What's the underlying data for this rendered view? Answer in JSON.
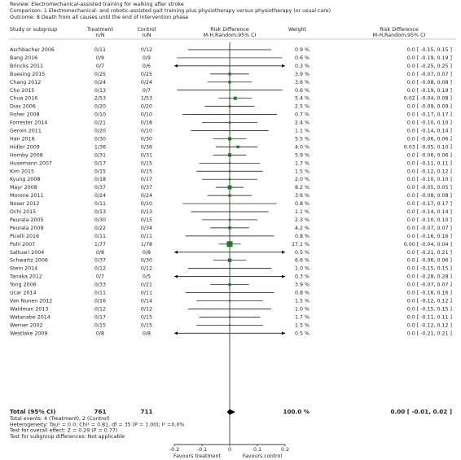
{
  "review": "Review:  Electromechanical-assisted training for walking after stroke",
  "comparison": "Comparison:  1 Electromechanical- and robotic-assisted gait training plus physiotherapy versus physiotherapy (or usual care)",
  "outcome": "Outcome:  8 Death from all causes until the end of intervention phase",
  "headers": {
    "study": "Study or subgroup",
    "treatment": "Treatment",
    "treatment_n": "n/N",
    "control": "Control",
    "control_n": "n/N",
    "rd": "Risk Difference",
    "rd_method": "M-H,Random,95% CI",
    "weight": "Weight",
    "rd2": "Risk Difference",
    "rd2_method": "M-H,Random,95% CI"
  },
  "chart_data": {
    "type": "forest",
    "xlim": [
      -0.2,
      0.2
    ],
    "xticks": [
      -0.2,
      -0.1,
      0,
      0.1,
      0.2
    ],
    "x_labels": [
      "Favours treatment",
      "Favours control"
    ],
    "studies": [
      {
        "name": "Aschbacher 2006",
        "treatment": "0/11",
        "control": "0/12",
        "weight": 0.9,
        "weight_label": "0.9 %",
        "rd": 0,
        "lower": -0.15,
        "upper": 0.15,
        "ci": "0.0 [ -0.15, 0.15 ]"
      },
      {
        "name": "Bang 2016",
        "treatment": "0/9",
        "control": "0/9",
        "weight": 0.6,
        "weight_label": "0.6 %",
        "rd": 0,
        "lower": -0.19,
        "upper": 0.19,
        "ci": "0.0 [ -0.19, 0.19 ]"
      },
      {
        "name": "Brincks 2011",
        "treatment": "0/7",
        "control": "0/6",
        "weight": 0.3,
        "weight_label": "0.3 %",
        "rd": 0,
        "lower": -0.25,
        "upper": 0.25,
        "ci": "0.0 [ -0.25, 0.25 ]"
      },
      {
        "name": "Buesing 2015",
        "treatment": "0/25",
        "control": "0/25",
        "weight": 3.9,
        "weight_label": "3.9 %",
        "rd": 0,
        "lower": -0.07,
        "upper": 0.07,
        "ci": "0.0 [ -0.07, 0.07 ]"
      },
      {
        "name": "Chang 2012",
        "treatment": "0/24",
        "control": "0/24",
        "weight": 3.6,
        "weight_label": "3.6 %",
        "rd": 0,
        "lower": -0.08,
        "upper": 0.08,
        "ci": "0.0 [ -0.08, 0.08 ]"
      },
      {
        "name": "Cho 2015",
        "treatment": "0/13",
        "control": "0/7",
        "weight": 0.6,
        "weight_label": "0.6 %",
        "rd": 0,
        "lower": -0.19,
        "upper": 0.19,
        "ci": "0.0 [ -0.19, 0.19 ]"
      },
      {
        "name": "Chua 2016",
        "treatment": "2/53",
        "control": "1/53",
        "weight": 5.4,
        "weight_label": "5.4 %",
        "rd": 0.02,
        "lower": -0.04,
        "upper": 0.08,
        "ci": "0.02 [ -0.04, 0.08 ]"
      },
      {
        "name": "Dias 2006",
        "treatment": "0/20",
        "control": "0/20",
        "weight": 2.5,
        "weight_label": "2.5 %",
        "rd": 0,
        "lower": -0.09,
        "upper": 0.09,
        "ci": "0.0 [ -0.09, 0.09 ]"
      },
      {
        "name": "Fisher 2008",
        "treatment": "0/10",
        "control": "0/10",
        "weight": 0.7,
        "weight_label": "0.7 %",
        "rd": 0,
        "lower": -0.17,
        "upper": 0.17,
        "ci": "0.0 [ -0.17, 0.17 ]"
      },
      {
        "name": "Forrester 2014",
        "treatment": "0/21",
        "control": "0/18",
        "weight": 2.4,
        "weight_label": "2.4 %",
        "rd": 0,
        "lower": -0.1,
        "upper": 0.1,
        "ci": "0.0 [ -0.10, 0.10 ]"
      },
      {
        "name": "Geroin 2011",
        "treatment": "0/20",
        "control": "0/10",
        "weight": 1.1,
        "weight_label": "1.1 %",
        "rd": 0,
        "lower": -0.14,
        "upper": 0.14,
        "ci": "0.0 [ -0.14, 0.14 ]"
      },
      {
        "name": "Han 2016",
        "treatment": "0/30",
        "control": "0/30",
        "weight": 5.5,
        "weight_label": "5.5 %",
        "rd": 0,
        "lower": -0.06,
        "upper": 0.06,
        "ci": "0.0 [ -0.06, 0.06 ]"
      },
      {
        "name": "Hidler 2009",
        "treatment": "1/36",
        "control": "0/36",
        "weight": 4.0,
        "weight_label": "4.0 %",
        "rd": 0.03,
        "lower": -0.05,
        "upper": 0.1,
        "ci": "0.03 [ -0.05, 0.10 ]"
      },
      {
        "name": "Hornby 2008",
        "treatment": "0/31",
        "control": "0/31",
        "weight": 5.9,
        "weight_label": "5.9 %",
        "rd": 0,
        "lower": -0.06,
        "upper": 0.06,
        "ci": "0.0 [ -0.06, 0.06 ]"
      },
      {
        "name": "Husemann 2007",
        "treatment": "0/17",
        "control": "0/15",
        "weight": 1.7,
        "weight_label": "1.7 %",
        "rd": 0,
        "lower": -0.11,
        "upper": 0.11,
        "ci": "0.0 [ -0.11, 0.11 ]"
      },
      {
        "name": "Kim 2015",
        "treatment": "0/15",
        "control": "0/15",
        "weight": 1.5,
        "weight_label": "1.5 %",
        "rd": 0,
        "lower": -0.12,
        "upper": 0.12,
        "ci": "0.0 [ -0.12, 0.12 ]"
      },
      {
        "name": "Kyung 2008",
        "treatment": "0/18",
        "control": "0/17",
        "weight": 2.0,
        "weight_label": "2.0 %",
        "rd": 0,
        "lower": -0.1,
        "upper": 0.1,
        "ci": "0.0 [ -0.10, 0.10 ]"
      },
      {
        "name": "Mayr 2008",
        "treatment": "0/37",
        "control": "0/37",
        "weight": 8.2,
        "weight_label": "8.2 %",
        "rd": 0,
        "lower": -0.05,
        "upper": 0.05,
        "ci": "0.0 [ -0.05, 0.05 ]"
      },
      {
        "name": "Morone 2011",
        "treatment": "0/24",
        "control": "0/24",
        "weight": 3.6,
        "weight_label": "3.6 %",
        "rd": 0,
        "lower": -0.08,
        "upper": 0.08,
        "ci": "0.0 [ -0.08, 0.08 ]"
      },
      {
        "name": "Noser 2012",
        "treatment": "0/11",
        "control": "0/10",
        "weight": 0.8,
        "weight_label": "0.8 %",
        "rd": 0,
        "lower": -0.17,
        "upper": 0.17,
        "ci": "0.0 [ -0.17, 0.17 ]"
      },
      {
        "name": "Ochi 2015",
        "treatment": "0/13",
        "control": "0/13",
        "weight": 1.1,
        "weight_label": "1.1 %",
        "rd": 0,
        "lower": -0.14,
        "upper": 0.14,
        "ci": "0.0 [ -0.14, 0.14 ]"
      },
      {
        "name": "Peurala 2005",
        "treatment": "0/30",
        "control": "0/15",
        "weight": 2.3,
        "weight_label": "2.3 %",
        "rd": 0,
        "lower": -0.1,
        "upper": 0.1,
        "ci": "0.0 [ -0.10, 0.10 ]"
      },
      {
        "name": "Peurala 2009",
        "treatment": "0/22",
        "control": "0/34",
        "weight": 4.2,
        "weight_label": "4.2 %",
        "rd": 0,
        "lower": -0.07,
        "upper": 0.07,
        "ci": "0.0 [ -0.07, 0.07 ]"
      },
      {
        "name": "Picelli 2016",
        "treatment": "0/11",
        "control": "0/11",
        "weight": 0.8,
        "weight_label": "0.8 %",
        "rd": 0,
        "lower": -0.16,
        "upper": 0.16,
        "ci": "0.0 [ -0.16, 0.16 ]"
      },
      {
        "name": "Pohl 2007",
        "treatment": "1/77",
        "control": "1/78",
        "weight": 17.1,
        "weight_label": "17.1 %",
        "rd": 0,
        "lower": -0.04,
        "upper": 0.04,
        "ci": "0.00 [ -0.04, 0.04 ]"
      },
      {
        "name": "Saltuari 2004",
        "treatment": "0/8",
        "control": "0/8",
        "weight": 0.5,
        "weight_label": "0.5 %",
        "rd": 0,
        "lower": -0.21,
        "upper": 0.21,
        "ci": "0.0 [ -0.21, 0.21 ]"
      },
      {
        "name": "Schwartz 2006",
        "treatment": "0/37",
        "control": "0/30",
        "weight": 6.6,
        "weight_label": "6.6 %",
        "rd": 0,
        "lower": -0.06,
        "upper": 0.06,
        "ci": "0.0 [ -0.06, 0.06 ]"
      },
      {
        "name": "Stein 2014",
        "treatment": "0/12",
        "control": "0/12",
        "weight": 1.0,
        "weight_label": "1.0 %",
        "rd": 0,
        "lower": -0.15,
        "upper": 0.15,
        "ci": "0.0 [ -0.15, 0.15 ]"
      },
      {
        "name": "Tanaka 2012",
        "treatment": "0/7",
        "control": "0/5",
        "weight": 0.3,
        "weight_label": "0.3 %",
        "rd": 0,
        "lower": -0.28,
        "upper": 0.28,
        "ci": "0.0 [ -0.28, 0.28 ]"
      },
      {
        "name": "Tong 2006",
        "treatment": "0/33",
        "control": "0/21",
        "weight": 3.9,
        "weight_label": "3.9 %",
        "rd": 0,
        "lower": -0.07,
        "upper": 0.07,
        "ci": "0.0 [ -0.07, 0.07 ]"
      },
      {
        "name": "Ucar 2014",
        "treatment": "0/11",
        "control": "0/11",
        "weight": 0.8,
        "weight_label": "0.8 %",
        "rd": 0,
        "lower": -0.16,
        "upper": 0.16,
        "ci": "0.0 [ -0.16, 0.16 ]"
      },
      {
        "name": "Van Nunen 2012",
        "treatment": "0/16",
        "control": "0/14",
        "weight": 1.5,
        "weight_label": "1.5 %",
        "rd": 0,
        "lower": -0.12,
        "upper": 0.12,
        "ci": "0.0 [ -0.12, 0.12 ]"
      },
      {
        "name": "Waldman 2013",
        "treatment": "0/12",
        "control": "0/12",
        "weight": 1.0,
        "weight_label": "1.0 %",
        "rd": 0,
        "lower": -0.15,
        "upper": 0.15,
        "ci": "0.0 [ -0.15, 0.15 ]"
      },
      {
        "name": "Watanabe 2014",
        "treatment": "0/17",
        "control": "0/15",
        "weight": 1.7,
        "weight_label": "1.7 %",
        "rd": 0,
        "lower": -0.11,
        "upper": 0.11,
        "ci": "0.0 [ -0.11, 0.11 ]"
      },
      {
        "name": "Werner 2002",
        "treatment": "0/15",
        "control": "0/15",
        "weight": 1.5,
        "weight_label": "1.5 %",
        "rd": 0,
        "lower": -0.12,
        "upper": 0.12,
        "ci": "0.0 [ -0.12, 0.12 ]"
      },
      {
        "name": "Westlake 2009",
        "treatment": "0/8",
        "control": "0/8",
        "weight": 0.5,
        "weight_label": "0.5 %",
        "rd": 0,
        "lower": -0.21,
        "upper": 0.21,
        "ci": "0.0 [ -0.21, 0.21 ]"
      }
    ],
    "total": {
      "name": "Total (95% CI)",
      "treatment": 761,
      "control": 711,
      "weight": 100.0,
      "weight_label": "100.0 %",
      "rd": 0,
      "lower": -0.01,
      "upper": 0.02,
      "ci": "0.00 [ -0.01, 0.02 ]"
    },
    "footnotes": [
      "Total events: 4 (Treatment), 2 (Control)",
      "Heterogeneity: Tau² = 0.0; Chi² = 0.81, df = 35 (P = 1.00); I² =0.0%",
      "Test for overall effect: Z = 0.29 (P = 0.77)",
      "Test for subgroup differences: Not applicable"
    ]
  }
}
